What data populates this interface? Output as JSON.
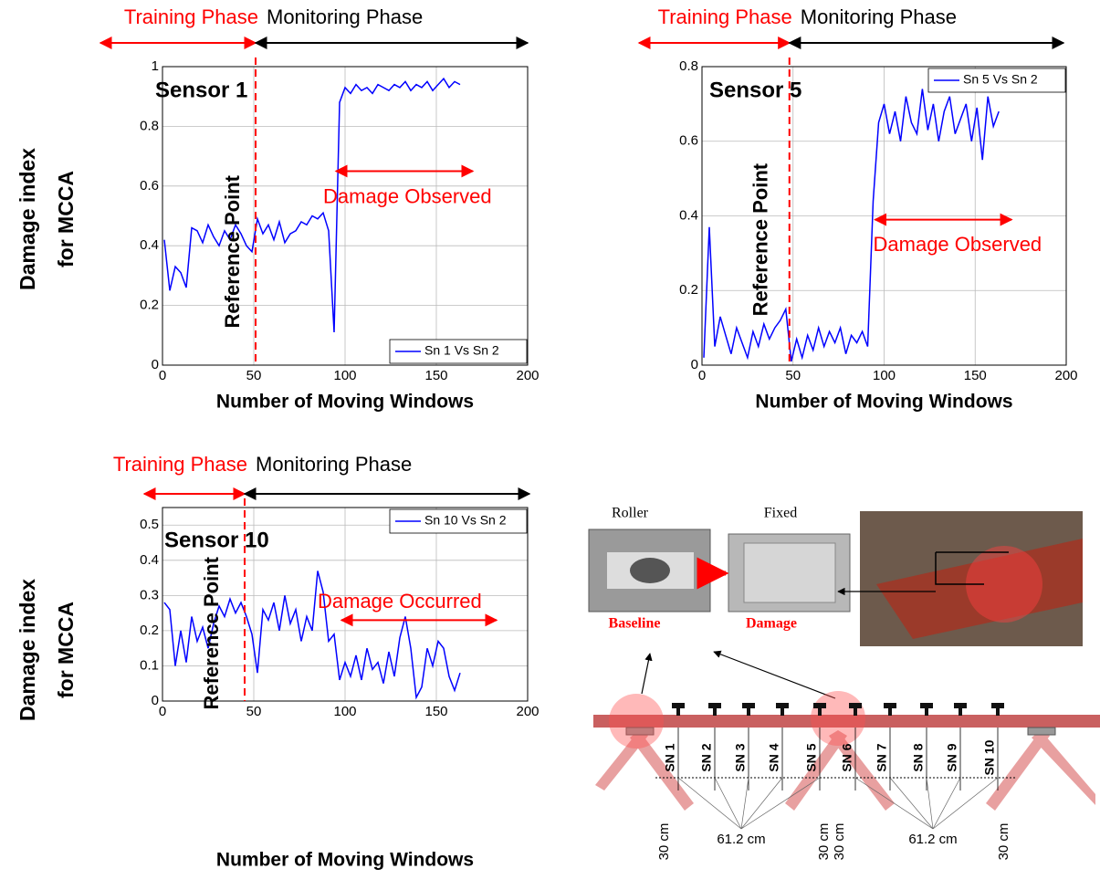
{
  "chart_data": [
    {
      "type": "line",
      "xlabel": "Number of Moving Windows",
      "ylabel": [
        "Damage index",
        "for MCCA"
      ],
      "x": [
        1,
        4,
        7,
        10,
        13,
        16,
        19,
        22,
        25,
        28,
        31,
        34,
        37,
        40,
        43,
        46,
        49,
        52,
        55,
        58,
        61,
        64,
        67,
        70,
        73,
        76,
        79,
        82,
        85,
        88,
        91,
        94,
        97,
        100,
        103,
        106,
        109,
        112,
        115,
        118,
        121,
        124,
        127,
        130,
        133,
        136,
        139,
        142,
        145,
        148,
        151,
        154,
        157,
        160,
        163
      ],
      "series": [
        {
          "name": "Sn 1 Vs Sn 2",
          "color": "#0000ff",
          "values": [
            0.42,
            0.25,
            0.33,
            0.31,
            0.26,
            0.46,
            0.45,
            0.41,
            0.47,
            0.43,
            0.4,
            0.45,
            0.42,
            0.47,
            0.44,
            0.4,
            0.38,
            0.49,
            0.44,
            0.47,
            0.42,
            0.48,
            0.41,
            0.44,
            0.45,
            0.48,
            0.47,
            0.5,
            0.49,
            0.51,
            0.45,
            0.11,
            0.88,
            0.93,
            0.91,
            0.94,
            0.92,
            0.93,
            0.91,
            0.94,
            0.93,
            0.92,
            0.94,
            0.93,
            0.95,
            0.92,
            0.94,
            0.93,
            0.95,
            0.92,
            0.94,
            0.96,
            0.93,
            0.95,
            0.94
          ]
        }
      ],
      "xlim": [
        0,
        200
      ],
      "xticks": [
        0,
        50,
        100,
        150,
        200
      ],
      "ylim": [
        0,
        1
      ],
      "yticks": [
        0,
        0.2,
        0.4,
        0.6,
        0.8,
        1
      ],
      "grid": true,
      "legend": "lower right",
      "reference_x": 51,
      "annotations": {
        "training": "Training Phase",
        "monitoring": "Monitoring Phase",
        "reference": "Reference Point",
        "damage": "Damage Observed",
        "sensor": "Sensor 1"
      }
    },
    {
      "type": "line",
      "xlabel": "Number of Moving Windows",
      "x": [
        1,
        4,
        7,
        10,
        13,
        16,
        19,
        22,
        25,
        28,
        31,
        34,
        37,
        40,
        43,
        46,
        49,
        52,
        55,
        58,
        61,
        64,
        67,
        70,
        73,
        76,
        79,
        82,
        85,
        88,
        91,
        94,
        97,
        100,
        103,
        106,
        109,
        112,
        115,
        118,
        121,
        124,
        127,
        130,
        133,
        136,
        139,
        142,
        145,
        148,
        151,
        154,
        157,
        160,
        163
      ],
      "series": [
        {
          "name": "Sn 5 Vs Sn 2",
          "color": "#0000ff",
          "values": [
            0.02,
            0.37,
            0.05,
            0.13,
            0.08,
            0.03,
            0.1,
            0.06,
            0.02,
            0.09,
            0.05,
            0.11,
            0.07,
            0.1,
            0.12,
            0.15,
            0.01,
            0.07,
            0.02,
            0.08,
            0.04,
            0.1,
            0.05,
            0.09,
            0.06,
            0.1,
            0.03,
            0.08,
            0.06,
            0.09,
            0.05,
            0.44,
            0.65,
            0.7,
            0.62,
            0.68,
            0.6,
            0.72,
            0.65,
            0.62,
            0.74,
            0.63,
            0.7,
            0.6,
            0.68,
            0.72,
            0.62,
            0.66,
            0.7,
            0.6,
            0.69,
            0.55,
            0.72,
            0.64,
            0.68
          ]
        }
      ],
      "xlim": [
        0,
        200
      ],
      "xticks": [
        0,
        50,
        100,
        150,
        200
      ],
      "ylim": [
        0,
        0.8
      ],
      "yticks": [
        0,
        0.2,
        0.4,
        0.6,
        0.8
      ],
      "grid": true,
      "legend": "upper right",
      "reference_x": 48,
      "annotations": {
        "training": "Training Phase",
        "monitoring": "Monitoring Phase",
        "reference": "Reference Point",
        "damage": "Damage Observed",
        "sensor": "Sensor 5"
      }
    },
    {
      "type": "line",
      "xlabel": "Number of Moving Windows",
      "ylabel": [
        "Damage index",
        "for MCCA"
      ],
      "x": [
        1,
        4,
        7,
        10,
        13,
        16,
        19,
        22,
        25,
        28,
        31,
        34,
        37,
        40,
        43,
        46,
        49,
        52,
        55,
        58,
        61,
        64,
        67,
        70,
        73,
        76,
        79,
        82,
        85,
        88,
        91,
        94,
        97,
        100,
        103,
        106,
        109,
        112,
        115,
        118,
        121,
        124,
        127,
        130,
        133,
        136,
        139,
        142,
        145,
        148,
        151,
        154,
        157,
        160,
        163
      ],
      "series": [
        {
          "name": "Sn 10 Vs Sn 2",
          "color": "#0000ff",
          "values": [
            0.28,
            0.26,
            0.1,
            0.2,
            0.11,
            0.24,
            0.17,
            0.21,
            0.15,
            0.22,
            0.27,
            0.24,
            0.29,
            0.25,
            0.28,
            0.24,
            0.19,
            0.08,
            0.26,
            0.23,
            0.28,
            0.2,
            0.3,
            0.22,
            0.26,
            0.17,
            0.24,
            0.2,
            0.37,
            0.31,
            0.17,
            0.19,
            0.06,
            0.11,
            0.07,
            0.13,
            0.06,
            0.15,
            0.09,
            0.11,
            0.05,
            0.14,
            0.07,
            0.18,
            0.24,
            0.15,
            0.01,
            0.04,
            0.15,
            0.1,
            0.17,
            0.15,
            0.07,
            0.03,
            0.08
          ]
        }
      ],
      "xlim": [
        0,
        200
      ],
      "xticks": [
        0,
        50,
        100,
        150,
        200
      ],
      "ylim": [
        0,
        0.55
      ],
      "yticks": [
        0,
        0.1,
        0.2,
        0.3,
        0.4,
        0.5
      ],
      "grid": true,
      "legend": "upper right",
      "reference_x": 45,
      "annotations": {
        "training": "Training Phase",
        "monitoring": "Monitoring Phase",
        "reference": "Reference Point",
        "damage": "Damage Occurred",
        "sensor": "Sensor 10"
      }
    }
  ],
  "diagram": {
    "supports": [
      "Roller",
      "Fixed"
    ],
    "states": [
      "Baseline",
      "Damage"
    ],
    "sensors": [
      "SN 1",
      "SN 2",
      "SN 3",
      "SN 4",
      "SN 5",
      "SN 6",
      "SN 7",
      "SN 8",
      "SN 9",
      "SN 10"
    ],
    "dimensions": [
      "30 cm",
      "61.2 cm",
      "30 cm",
      "30 cm",
      "61.2 cm",
      "30 cm"
    ]
  }
}
